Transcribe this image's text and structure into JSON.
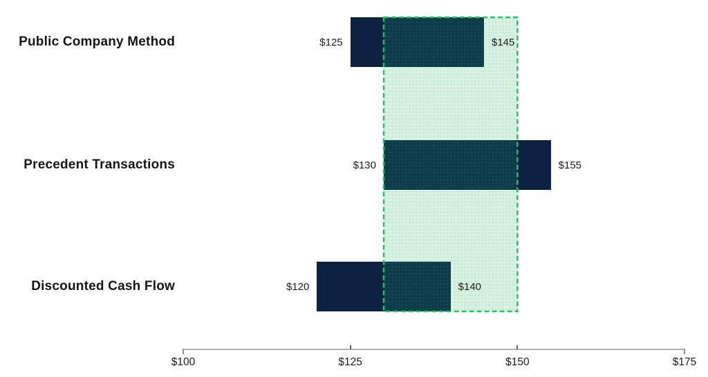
{
  "chart_data": {
    "type": "bar",
    "variant": "horizontal-range-football-field",
    "title": "",
    "categories": [
      "Public Company Method",
      "Precedent Transactions",
      "Discounted Cash Flow"
    ],
    "ranges": [
      {
        "category": "Public Company Method",
        "low": 125,
        "high": 145,
        "low_label": "$125",
        "high_label": "$145"
      },
      {
        "category": "Precedent Transactions",
        "low": 130,
        "high": 155,
        "low_label": "$130",
        "high_label": "$155"
      },
      {
        "category": "Discounted Cash Flow",
        "low": 120,
        "high": 140,
        "low_label": "$120",
        "high_label": "$140"
      }
    ],
    "highlight_range": {
      "low": 130,
      "high": 150
    },
    "x_axis": {
      "min": 100,
      "max": 175,
      "ticks": [
        100,
        125,
        150,
        175
      ],
      "tick_labels": [
        "$100",
        "$125",
        "$150",
        "$175"
      ]
    },
    "grid": false,
    "legend_position": "none",
    "colors": {
      "bar": "#0d2140",
      "bar_overlap": "#0d3b49",
      "highlight_fill": "#d8f1e2",
      "highlight_border": "#22c163",
      "label_text": "#151515",
      "value_text": "#1c1c1c",
      "axis_line": "#b2b2b2",
      "axis_cap": "#8f8f8f",
      "axis_tick": "#5f5f5f"
    }
  }
}
